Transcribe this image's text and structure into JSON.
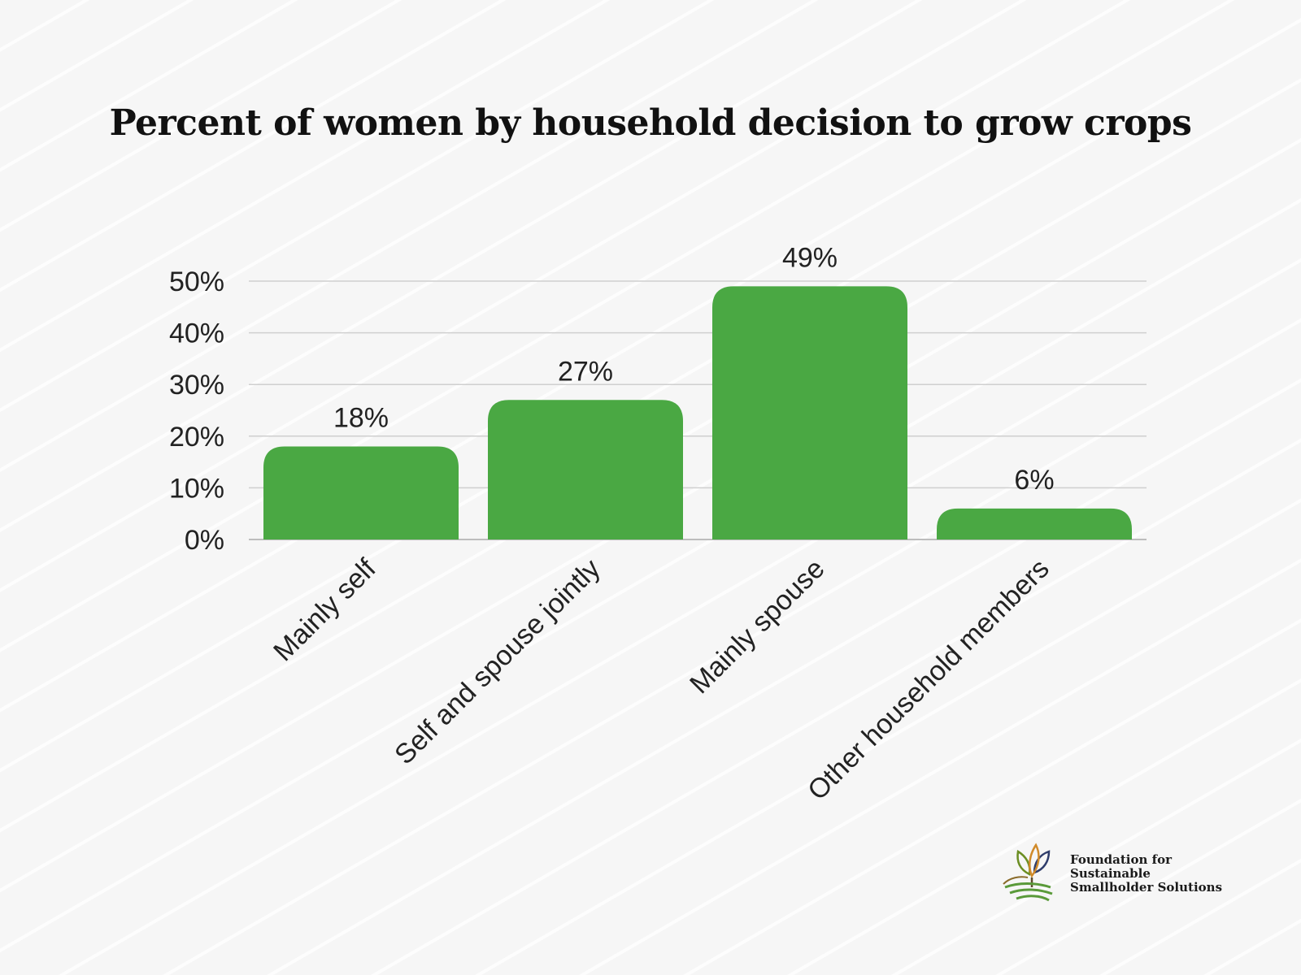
{
  "chart_data": {
    "type": "bar",
    "title": "Percent of women by household decision to grow crops",
    "categories": [
      "Mainly self",
      "Self and spouse jointly",
      "Mainly spouse",
      "Other household members"
    ],
    "values": [
      18,
      27,
      49,
      6
    ],
    "data_labels": [
      "18%",
      "27%",
      "49%",
      "6%"
    ],
    "yticks": [
      0,
      10,
      20,
      30,
      40,
      50
    ],
    "ytick_labels": [
      "0%",
      "10%",
      "20%",
      "30%",
      "40%",
      "50%"
    ],
    "ylim": [
      0,
      50
    ],
    "xlabel": "",
    "ylabel": "",
    "grid": true,
    "bar_color": "#4aa843"
  },
  "brand": {
    "line1": "Foundation for",
    "line2": "Sustainable",
    "line3": "Smallholder Solutions",
    "logo_icon": "sprout-field-logo-icon"
  }
}
